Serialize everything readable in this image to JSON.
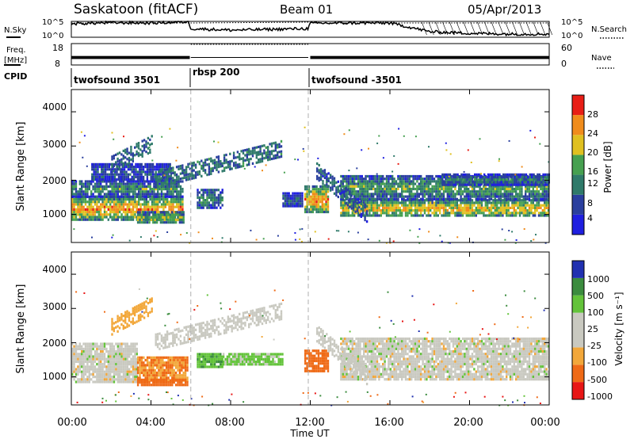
{
  "header": {
    "title": "Saskatoon (fitACF)",
    "beam": "Beam 01",
    "date": "05/Apr/2013"
  },
  "noise_panel": {
    "left_label": "N.Sky",
    "right_label": "N.Search",
    "left_ticks": [
      "10^5",
      "10^0"
    ],
    "right_ticks": [
      "10^5",
      "10^0"
    ]
  },
  "freq_panel": {
    "left_label_1": "Freq.",
    "left_label_2": "[MHz]",
    "right_label": "Nave",
    "left_ticks": [
      "18",
      "8"
    ],
    "right_ticks": [
      "60",
      "0"
    ]
  },
  "cpid_panel": {
    "label": "CPID",
    "segments": [
      "twofsound 3501",
      "rbsp 200",
      "twofsound -3501"
    ]
  },
  "power_panel": {
    "ylabel": "Slant Range [km]",
    "yticks": [
      "4000",
      "3000",
      "2000",
      "1000"
    ],
    "colorbar_label": "Power [dB]",
    "colorbar_ticks": [
      "28",
      "24",
      "20",
      "16",
      "12",
      "8",
      "4"
    ]
  },
  "velocity_panel": {
    "ylabel": "Slant Range [km]",
    "yticks": [
      "4000",
      "3000",
      "2000",
      "1000"
    ],
    "colorbar_label": "Velocity [m s⁻¹]",
    "colorbar_ticks": [
      "1000",
      "500",
      "100",
      "25",
      "-25",
      "-100",
      "-500",
      "-1000"
    ]
  },
  "xaxis": {
    "label": "Time UT",
    "ticks": [
      "00:00",
      "04:00",
      "08:00",
      "12:00",
      "16:00",
      "20:00",
      "00:00"
    ]
  },
  "colors": {
    "power_scale": [
      "#1f1fe0",
      "#2a3f9e",
      "#2f7a6a",
      "#46a050",
      "#e0c020",
      "#f08c1c",
      "#e81e16"
    ],
    "velocity_scale": [
      "#e81616",
      "#ef6a16",
      "#f2a73a",
      "#c9c9c0",
      "#c9c9c0",
      "#63c33a",
      "#3b8c3e",
      "#2030b0"
    ]
  },
  "chart_data": [
    {
      "type": "heatmap",
      "name": "power",
      "title": "",
      "xlabel": "Time UT",
      "ylabel": "Slant Range [km]",
      "xlim": [
        0,
        24
      ],
      "ylim": [
        180,
        4650
      ],
      "zlabel": "Power [dB]",
      "zlim": [
        0,
        32
      ],
      "grid": false,
      "mode_boundaries_hours": [
        6.0,
        11.9
      ],
      "bands": [
        {
          "t0": 0.0,
          "t1": 5.6,
          "r0": 850,
          "r1": 1550,
          "value": 26
        },
        {
          "t0": 0.0,
          "t1": 5.6,
          "r0": 1550,
          "r1": 2000,
          "value": 14
        },
        {
          "t0": 1.0,
          "t1": 5.0,
          "r0": 2000,
          "r1": 2500,
          "value": 9
        },
        {
          "t0": 3.3,
          "t1": 5.6,
          "r0": 750,
          "r1": 1100,
          "value": 18
        },
        {
          "t0": 6.3,
          "t1": 7.6,
          "r0": 1200,
          "r1": 1750,
          "value": 12
        },
        {
          "t0": 10.6,
          "t1": 11.6,
          "r0": 1250,
          "r1": 1650,
          "value": 10
        },
        {
          "t0": 11.7,
          "t1": 12.9,
          "r0": 1050,
          "r1": 1850,
          "value": 27
        },
        {
          "t0": 13.5,
          "t1": 24.0,
          "r0": 950,
          "r1": 1450,
          "value": 24
        },
        {
          "t0": 13.5,
          "t1": 24.0,
          "r0": 1450,
          "r1": 2150,
          "value": 16
        },
        {
          "t0": 18.5,
          "t1": 24.0,
          "r0": 1900,
          "r1": 2200,
          "value": 12
        }
      ],
      "arcs": [
        {
          "t0": 4.2,
          "t1": 10.5,
          "r0": 2050,
          "r1": 2950,
          "value": 10
        },
        {
          "t0": 12.3,
          "t1": 14.8,
          "r0": 2300,
          "r1": 1050,
          "value": 8
        },
        {
          "t0": 2.0,
          "t1": 4.0,
          "r0": 2500,
          "r1": 3100,
          "value": 9
        }
      ],
      "scatter_ranges": [
        {
          "t0": 0.0,
          "t1": 24.0,
          "r0": 180,
          "r1": 600,
          "density": 0.22
        },
        {
          "t0": 0.0,
          "t1": 24.0,
          "r0": 2100,
          "r1": 3600,
          "density": 0.07
        }
      ]
    },
    {
      "type": "heatmap",
      "name": "velocity",
      "title": "",
      "xlabel": "Time UT",
      "ylabel": "Slant Range [km]",
      "xlim": [
        0,
        24
      ],
      "ylim": [
        180,
        4650
      ],
      "zlabel": "Velocity [m s⁻¹]",
      "zlim": [
        -1200,
        1200
      ],
      "grid": false,
      "mode_boundaries_hours": [
        6.0,
        11.9
      ],
      "bands": [
        {
          "t0": 0.0,
          "t1": 3.3,
          "r0": 850,
          "r1": 2000,
          "value": 0
        },
        {
          "t0": 3.3,
          "t1": 5.8,
          "r0": 900,
          "r1": 1600,
          "value": -300
        },
        {
          "t0": 3.3,
          "t1": 5.8,
          "r0": 750,
          "r1": 950,
          "value": -600
        },
        {
          "t0": 6.3,
          "t1": 7.6,
          "r0": 1300,
          "r1": 1700,
          "value": 250
        },
        {
          "t0": 7.6,
          "t1": 10.6,
          "r0": 1400,
          "r1": 1700,
          "value": 150
        },
        {
          "t0": 11.7,
          "t1": 12.9,
          "r0": 1150,
          "r1": 1800,
          "value": -450
        },
        {
          "t0": 13.5,
          "t1": 24.0,
          "r0": 950,
          "r1": 2150,
          "value": 0
        }
      ],
      "arcs": [
        {
          "t0": 4.2,
          "t1": 10.5,
          "r0": 2050,
          "r1": 2950,
          "value": 0
        },
        {
          "t0": 12.3,
          "t1": 14.8,
          "r0": 2300,
          "r1": 1050,
          "value": 0
        },
        {
          "t0": 2.0,
          "t1": 4.0,
          "r0": 2500,
          "r1": 3100,
          "value": -200
        }
      ],
      "scatter_ranges": [
        {
          "t0": 0.0,
          "t1": 24.0,
          "r0": 180,
          "r1": 600,
          "density": 0.22
        },
        {
          "t0": 0.0,
          "t1": 24.0,
          "r0": 2100,
          "r1": 3600,
          "density": 0.06
        }
      ]
    },
    {
      "type": "line",
      "name": "noise",
      "series": [
        {
          "name": "N.Sky",
          "x": [
            0,
            2,
            4,
            5.9,
            6.0,
            8,
            10,
            11.9,
            12,
            14,
            16,
            17.3,
            18,
            20,
            22,
            24
          ],
          "y": [
            0.85,
            0.92,
            0.9,
            0.97,
            0.55,
            0.45,
            0.5,
            0.55,
            0.88,
            0.9,
            0.9,
            0.55,
            0.35,
            0.25,
            0.2,
            0.2
          ]
        },
        {
          "name": "N.Search",
          "x": [
            0,
            6,
            6.0,
            11.9,
            12,
            24
          ],
          "y": [
            0.9,
            0.9,
            0.9,
            0.95,
            0.9,
            0.9
          ]
        }
      ]
    },
    {
      "type": "line",
      "name": "freq_nave",
      "series": [
        {
          "name": "Freq. [MHz]",
          "x": [
            0,
            5.9,
            6.0,
            11.9,
            12,
            24
          ],
          "y": [
            11.5,
            11.5,
            11.5,
            11.5,
            11.5,
            11.5
          ]
        },
        {
          "name": "Nave",
          "x": [
            0,
            5.9,
            6.0,
            11.9,
            12,
            24
          ],
          "y": [
            48,
            48,
            60,
            60,
            48,
            48
          ]
        }
      ]
    }
  ]
}
